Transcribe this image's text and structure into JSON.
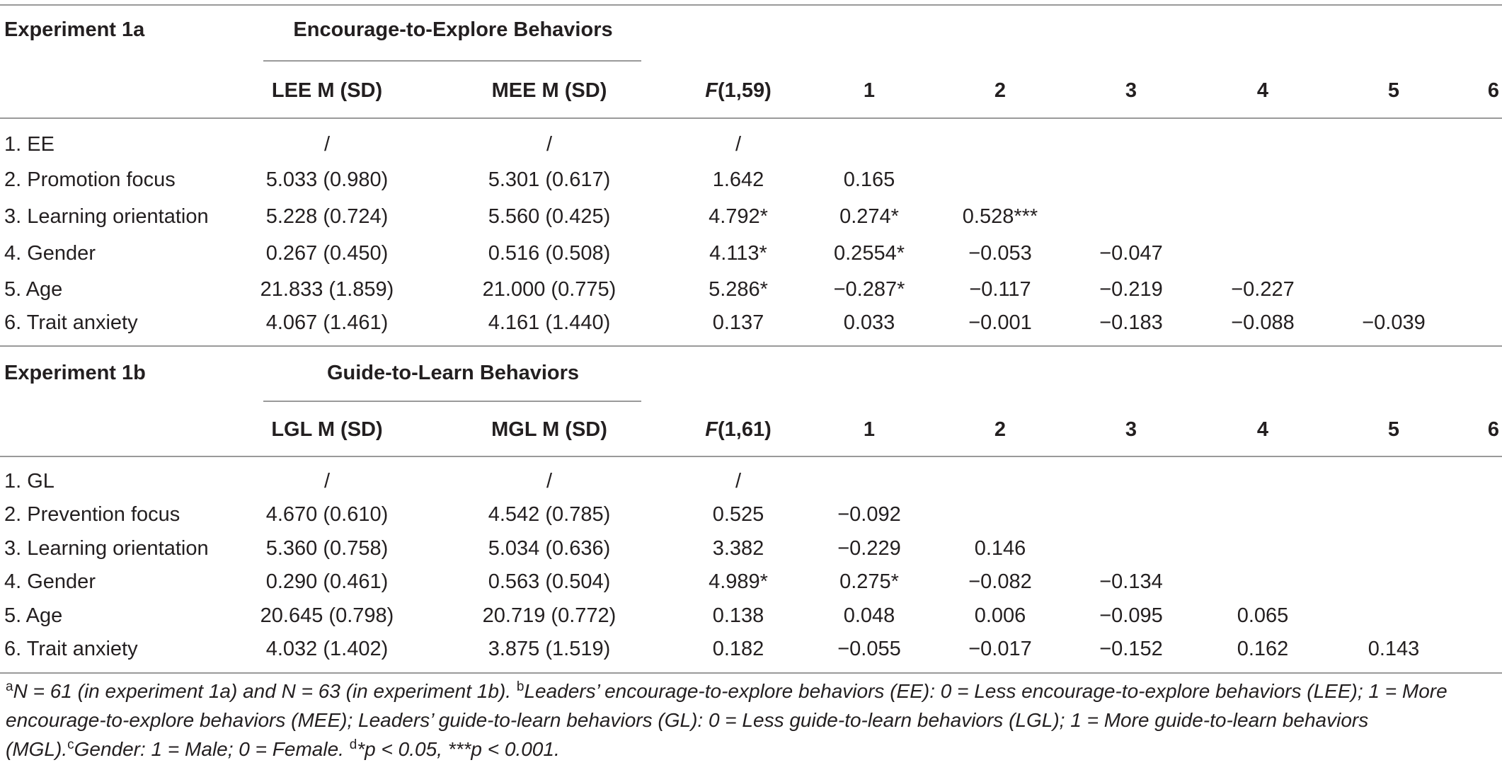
{
  "blocks": [
    {
      "experiment": "Experiment 1a",
      "group_header": "Encourage-to-Explore Behaviors",
      "columns": [
        "LEE M (SD)",
        "MEE M (SD)",
        "F(1,59)",
        "1",
        "2",
        "3",
        "4",
        "5",
        "6"
      ],
      "f_label_italic": "F",
      "f_label_rest": "(1,59)",
      "rows": [
        {
          "label": "1. EE",
          "c1": "/",
          "c2": "/",
          "f": "/",
          "r1": "",
          "r2": "",
          "r3": "",
          "r4": "",
          "r5": ""
        },
        {
          "label": "2. Promotion focus",
          "c1": "5.033 (0.980)",
          "c2": "5.301 (0.617)",
          "f": "1.642",
          "r1": "0.165",
          "r2": "",
          "r3": "",
          "r4": "",
          "r5": ""
        },
        {
          "label": "3. Learning orientation",
          "c1": "5.228 (0.724)",
          "c2": "5.560 (0.425)",
          "f": "4.792*",
          "r1": "0.274*",
          "r2": "0.528***",
          "r3": "",
          "r4": "",
          "r5": ""
        },
        {
          "label": "4. Gender",
          "c1": "0.267 (0.450)",
          "c2": "0.516 (0.508)",
          "f": "4.113*",
          "r1": "0.2554*",
          "r2": "−0.053",
          "r3": "−0.047",
          "r4": "",
          "r5": ""
        },
        {
          "label": "5. Age",
          "c1": "21.833 (1.859)",
          "c2": "21.000 (0.775)",
          "f": "5.286*",
          "r1": "−0.287*",
          "r2": "−0.117",
          "r3": "−0.219",
          "r4": "−0.227",
          "r5": ""
        },
        {
          "label": "6. Trait anxiety",
          "c1": "4.067 (1.461)",
          "c2": "4.161 (1.440)",
          "f": "0.137",
          "r1": "0.033",
          "r2": "−0.001",
          "r3": "−0.183",
          "r4": "−0.088",
          "r5": "−0.039"
        }
      ]
    },
    {
      "experiment": "Experiment 1b",
      "group_header": "Guide-to-Learn Behaviors",
      "columns": [
        "LGL M (SD)",
        "MGL M (SD)",
        "F(1,61)",
        "1",
        "2",
        "3",
        "4",
        "5",
        "6"
      ],
      "f_label_italic": "F",
      "f_label_rest": "(1,61)",
      "rows": [
        {
          "label": "1. GL",
          "c1": "/",
          "c2": "/",
          "f": "/",
          "r1": "",
          "r2": "",
          "r3": "",
          "r4": "",
          "r5": ""
        },
        {
          "label": "2. Prevention focus",
          "c1": "4.670 (0.610)",
          "c2": "4.542 (0.785)",
          "f": "0.525",
          "r1": "−0.092",
          "r2": "",
          "r3": "",
          "r4": "",
          "r5": ""
        },
        {
          "label": "3. Learning orientation",
          "c1": "5.360 (0.758)",
          "c2": "5.034 (0.636)",
          "f": "3.382",
          "r1": "−0.229",
          "r2": "0.146",
          "r3": "",
          "r4": "",
          "r5": ""
        },
        {
          "label": "4. Gender",
          "c1": "0.290 (0.461)",
          "c2": "0.563 (0.504)",
          "f": "4.989*",
          "r1": "0.275*",
          "r2": "−0.082",
          "r3": "−0.134",
          "r4": "",
          "r5": ""
        },
        {
          "label": "5. Age",
          "c1": "20.645 (0.798)",
          "c2": "20.719 (0.772)",
          "f": "0.138",
          "r1": "0.048",
          "r2": "0.006",
          "r3": "−0.095",
          "r4": "0.065",
          "r5": ""
        },
        {
          "label": "6. Trait anxiety",
          "c1": "4.032 (1.402)",
          "c2": "3.875 (1.519)",
          "f": "0.182",
          "r1": "−0.055",
          "r2": "−0.017",
          "r3": "−0.152",
          "r4": "0.162",
          "r5": "0.143"
        }
      ]
    }
  ],
  "footnotes": {
    "a_mark": "a",
    "a_text": "N = 61 (in experiment 1a) and N = 63 (in experiment 1b). ",
    "b_mark": "b",
    "b_text": "Leaders’ encourage-to-explore behaviors (EE): 0 = Less encourage-to-explore behaviors (LEE); 1 = More encourage-to-explore behaviors (MEE); Leaders’ guide-to-learn behaviors (GL): 0 = Less guide-to-learn behaviors (LGL); 1 = More guide-to-learn behaviors (MGL).",
    "c_mark": "c",
    "c_text": "Gender: 1 = Male; 0 = Female. ",
    "d_mark": "d",
    "d_text": "*p < 0.05, ***p < 0.001."
  }
}
